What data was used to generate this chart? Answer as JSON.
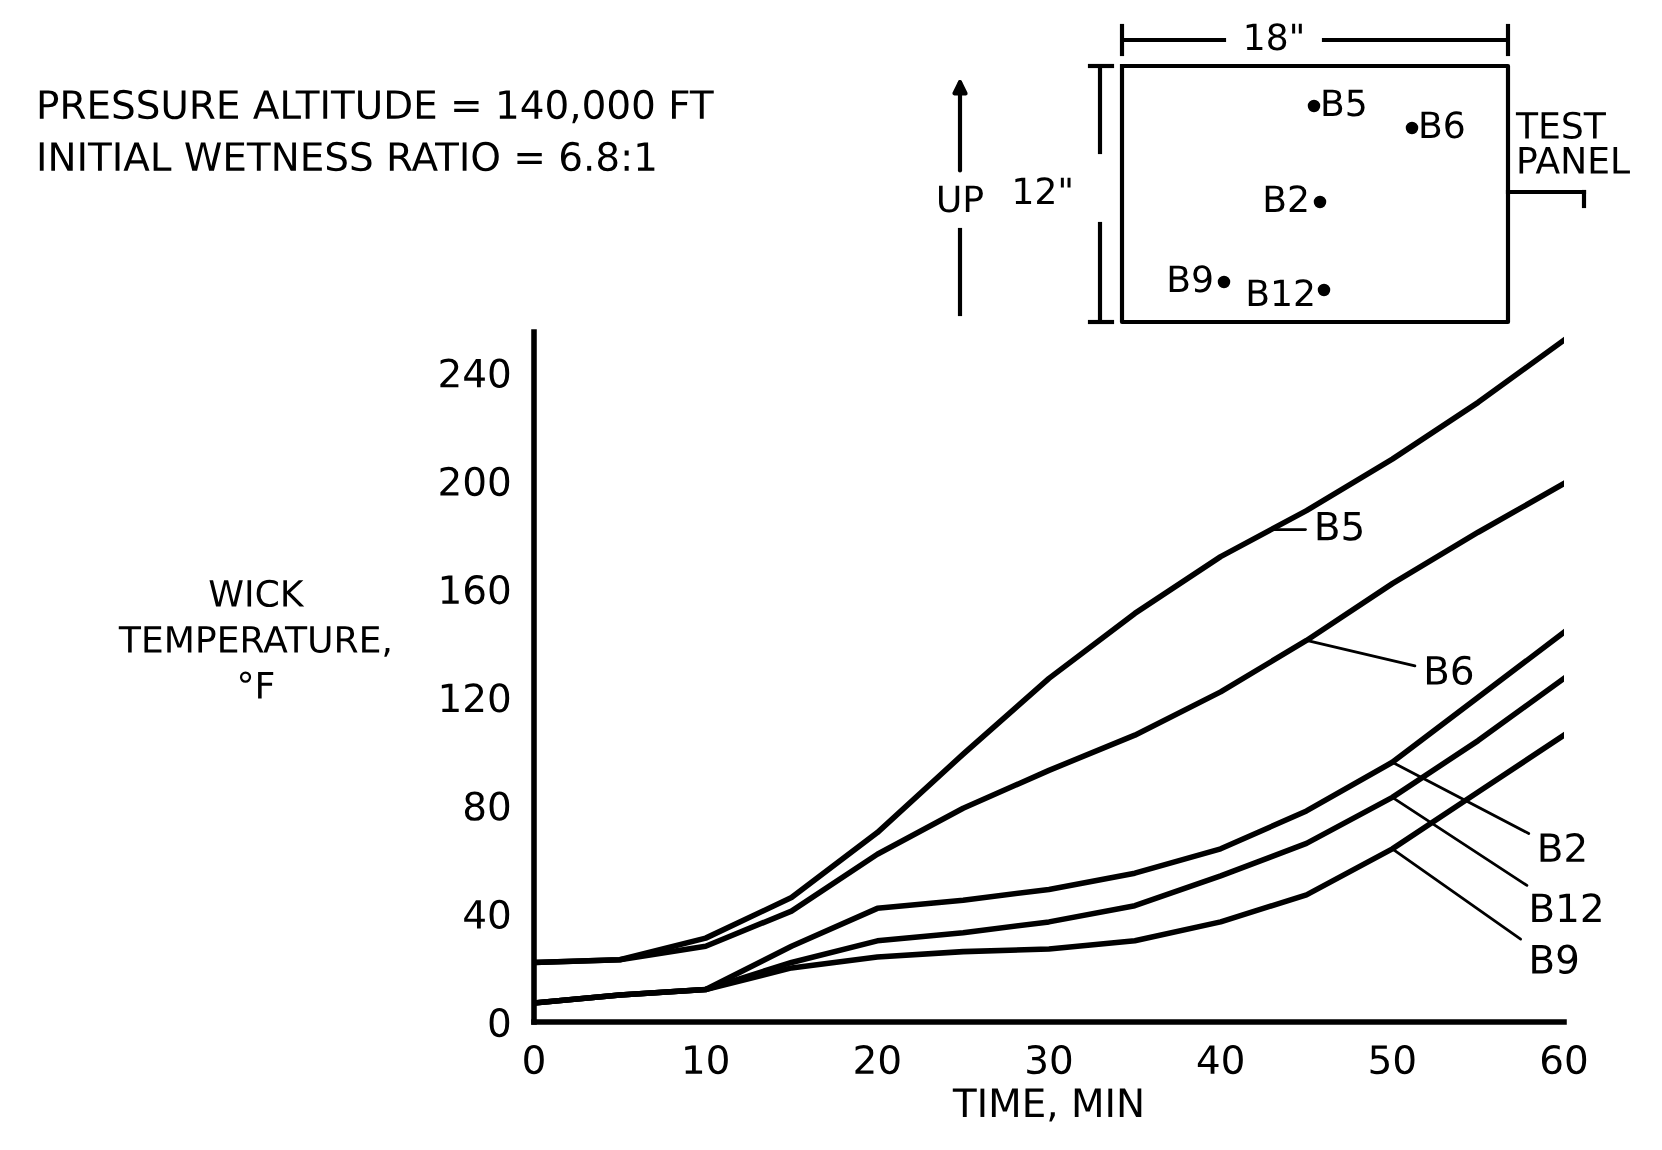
{
  "chart_data": {
    "type": "line",
    "xlabel": "TIME, MIN",
    "ylabel": "WICK\nTEMPERATURE,\n°F",
    "x": [
      0,
      5,
      10,
      15,
      20,
      25,
      30,
      35,
      40,
      45,
      50,
      55,
      60
    ],
    "series": [
      {
        "color": "#000000",
        "values": [
          22,
          23,
          31,
          46,
          70,
          99,
          127,
          151,
          172,
          189,
          208,
          229,
          252
        ]
      },
      {
        "color": "#000000",
        "values": [
          22,
          23,
          28,
          41,
          62,
          79,
          93,
          106,
          122,
          141,
          162,
          181,
          199
        ]
      },
      {
        "color": "#000000",
        "values": [
          7,
          10,
          12,
          28,
          42,
          45,
          49,
          55,
          64,
          78,
          96,
          120,
          144
        ]
      },
      {
        "color": "#000000",
        "values": [
          7,
          10,
          12,
          22,
          30,
          33,
          37,
          43,
          54,
          66,
          83,
          104,
          127
        ]
      },
      {
        "color": "#000000",
        "values": [
          7,
          10,
          12,
          20,
          24,
          26,
          27,
          30,
          37,
          47,
          64,
          85,
          106
        ]
      }
    ],
    "xlim": [
      0,
      60
    ],
    "xticks": [
      0,
      10,
      20,
      30,
      40,
      50,
      60
    ],
    "ylim": [
      0,
      255
    ],
    "yticks": [
      0,
      40,
      80,
      120,
      160,
      200,
      240
    ],
    "grid": false,
    "legend": false,
    "marker": "none",
    "line_style": "solid",
    "annotations": [
      "PRESSURE ALTITUDE = 140,000 FT",
      "INITIAL WETNESS RATIO = 6.8:1",
      "18\"",
      "12\"",
      "UP",
      "TEST PANEL",
      "B5",
      "B6",
      "B2",
      "B9",
      "B12",
      {
        "text": "B5",
        "x": 43,
        "y": 182
      },
      {
        "text": "B6",
        "x": 45,
        "y": 141
      },
      {
        "text": "B2",
        "x": 50,
        "y": 96
      },
      {
        "text": "B12",
        "x": 50,
        "y": 83
      },
      {
        "text": "B9",
        "x": 50,
        "y": 64
      }
    ]
  }
}
